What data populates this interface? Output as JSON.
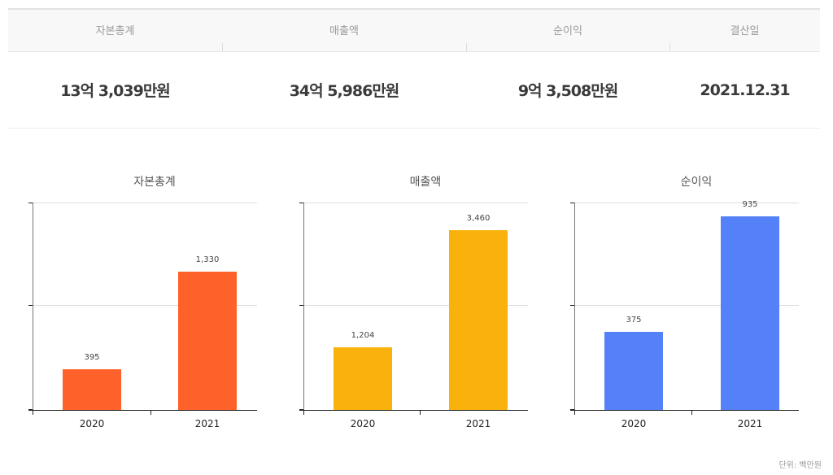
{
  "summary": {
    "headers": [
      "자본총계",
      "매출액",
      "순이익",
      "결산일"
    ],
    "values": [
      "13억 3,039만원",
      "34억 5,986만원",
      "9억 3,508만원",
      "2021.12.31"
    ]
  },
  "colors": {
    "capital": "#ff612b",
    "revenue": "#f9b10b",
    "profit": "#5581f8"
  },
  "unit_label": "단위: 백만원",
  "chart_data": [
    {
      "type": "bar",
      "title": "자본총계",
      "categories": [
        "2020",
        "2021"
      ],
      "values": [
        395,
        1330
      ],
      "value_labels": [
        "395",
        "1,330"
      ],
      "xlabel": "",
      "ylabel": "",
      "ylim": [
        0,
        2000
      ],
      "grid": true,
      "color": "#ff612b",
      "unit": "백만원"
    },
    {
      "type": "bar",
      "title": "매출액",
      "categories": [
        "2020",
        "2021"
      ],
      "values": [
        1204,
        3460
      ],
      "value_labels": [
        "1,204",
        "3,460"
      ],
      "xlabel": "",
      "ylabel": "",
      "ylim": [
        0,
        4000
      ],
      "grid": true,
      "color": "#f9b10b",
      "unit": "백만원"
    },
    {
      "type": "bar",
      "title": "순이익",
      "categories": [
        "2020",
        "2021"
      ],
      "values": [
        375,
        935
      ],
      "value_labels": [
        "375",
        "935"
      ],
      "xlabel": "",
      "ylabel": "",
      "ylim": [
        0,
        1000
      ],
      "grid": true,
      "color": "#5581f8",
      "unit": "백만원"
    }
  ]
}
